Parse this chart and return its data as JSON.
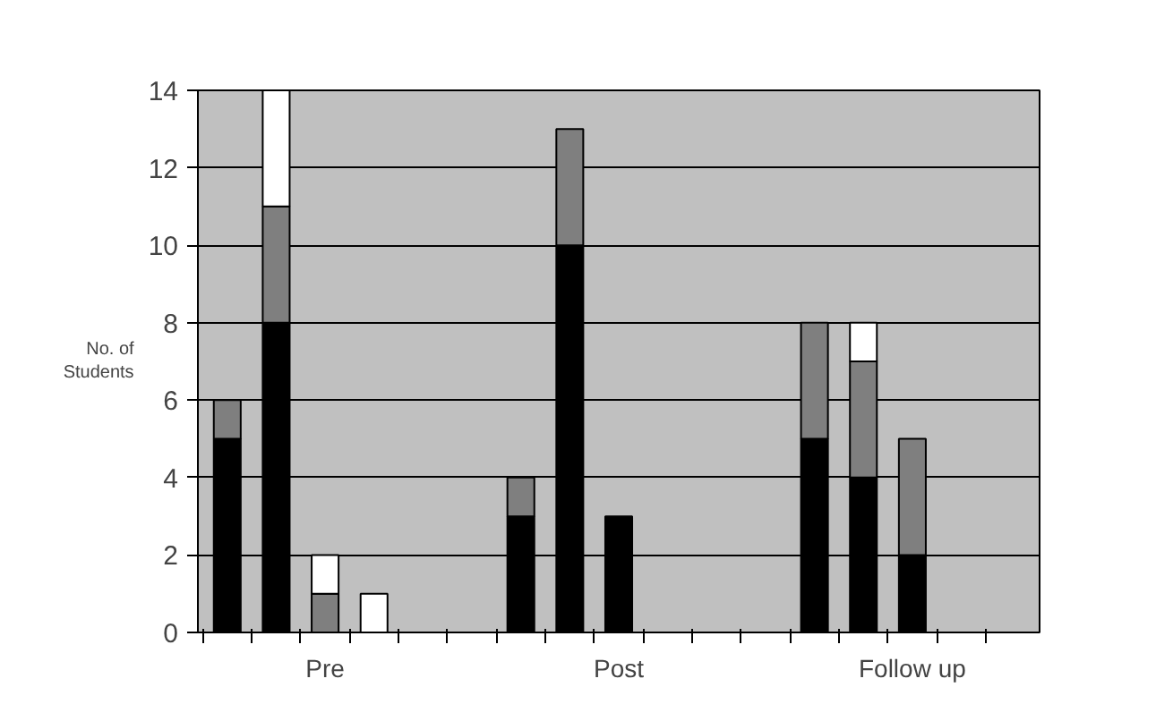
{
  "chart_data": {
    "type": "bar",
    "stacked": true,
    "ylabel": "No. of\nStudents",
    "categories": [
      null,
      null,
      null,
      null,
      null,
      null,
      null,
      null,
      null,
      null,
      null,
      null,
      null,
      null,
      null,
      null,
      null
    ],
    "series": [
      {
        "color": "#000000",
        "values": [
          5,
          8,
          0,
          0,
          0,
          null,
          3,
          10,
          3,
          0,
          0,
          null,
          5,
          4,
          2,
          0,
          0
        ]
      },
      {
        "color": "#7f7f7f",
        "values": [
          1,
          3,
          1,
          0,
          0,
          null,
          1,
          3,
          0,
          0,
          0,
          null,
          3,
          3,
          3,
          0,
          0
        ]
      },
      {
        "color": "#ffffff",
        "values": [
          0,
          3,
          1,
          1,
          0,
          null,
          0,
          0,
          0,
          0,
          0,
          null,
          0,
          1,
          0,
          0,
          0
        ]
      }
    ],
    "ylim": [
      0,
      14
    ],
    "yticks": [
      0,
      2,
      4,
      6,
      8,
      10,
      12,
      14
    ],
    "grid": "y",
    "annotations": [
      "Pre",
      "Post",
      "Follow up"
    ]
  }
}
